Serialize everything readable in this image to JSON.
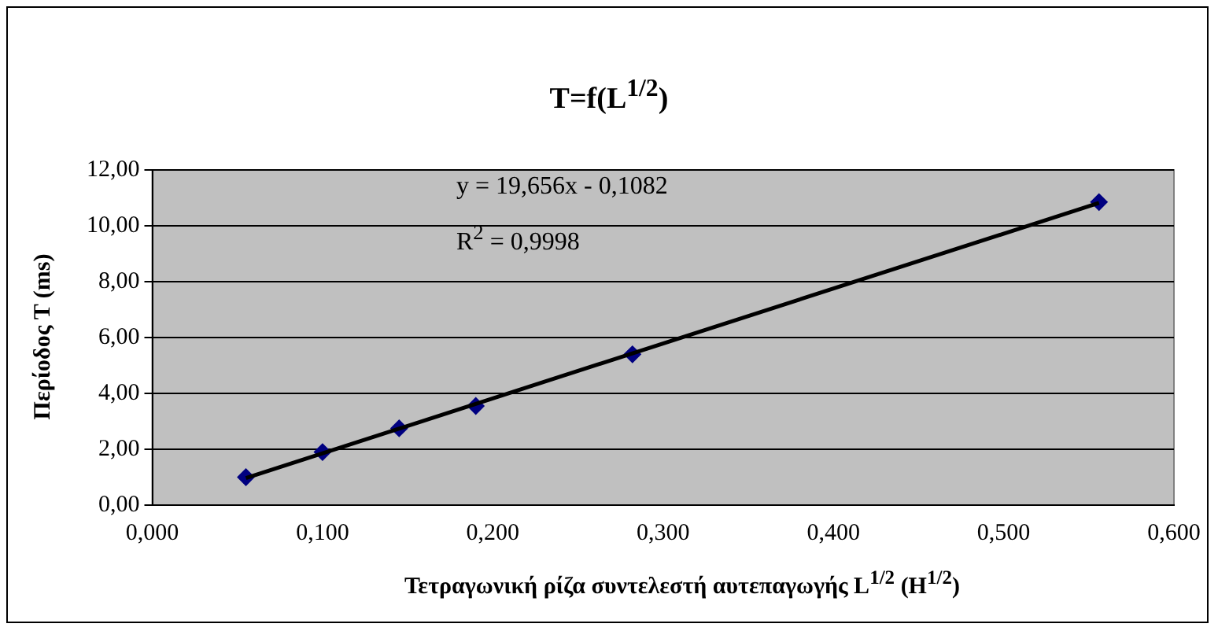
{
  "chart_data": {
    "type": "scatter",
    "title": "T=f(L$^{1/2}$)",
    "xlabel": "Τετραγωνική ρίζα συντελεστή αυτεπαγωγής  L$^{1/2}$ (H$^{1/2}$)",
    "ylabel": "Περίοδος T (ms)",
    "annotations": [
      "y = 19,656x - 0,1082",
      "R$^{2}$ = 0,9998"
    ],
    "series": [
      {
        "type": "scatter",
        "color": "#000080",
        "x": [
          0.055,
          0.1,
          0.145,
          0.19,
          0.282,
          0.556
        ],
        "values": [
          1.0,
          1.9,
          2.75,
          3.55,
          5.4,
          10.85
        ]
      },
      {
        "type": "line",
        "color": "#000000",
        "marker": "none",
        "x": [
          0.055,
          0.556
        ],
        "values": [
          0.97,
          10.82
        ]
      }
    ],
    "xlim": [
      0,
      0.6
    ],
    "xticks": [
      {
        "value": 0,
        "label": "0,000"
      },
      {
        "value": 0.1,
        "label": "0,100"
      },
      {
        "value": 0.2,
        "label": "0,200"
      },
      {
        "value": 0.3,
        "label": "0,300"
      },
      {
        "value": 0.4,
        "label": "0,400"
      },
      {
        "value": 0.5,
        "label": "0,500"
      },
      {
        "value": 0.6,
        "label": "0,600"
      }
    ],
    "ylim": [
      0,
      12
    ],
    "yticks": [
      {
        "value": 0,
        "label": "0,00"
      },
      {
        "value": 2,
        "label": "2,00"
      },
      {
        "value": 4,
        "label": "4,00"
      },
      {
        "value": 6,
        "label": "6,00"
      },
      {
        "value": 8,
        "label": "8,00"
      },
      {
        "value": 10,
        "label": "10,00"
      },
      {
        "value": 12,
        "label": "12,00"
      }
    ],
    "grid": "y",
    "legend": false,
    "marker": "diamond"
  }
}
